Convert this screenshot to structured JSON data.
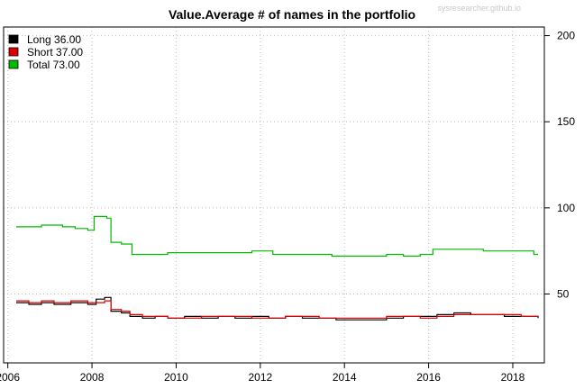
{
  "chart_data": {
    "type": "line",
    "title": "Value.Average # of names in the portfolio",
    "credit": "sysresearcher.github.io",
    "xlabel": "",
    "ylabel": "",
    "xlim": [
      2005.9,
      2018.75
    ],
    "ylim": [
      10,
      205
    ],
    "x_ticks": [
      2006,
      2008,
      2010,
      2012,
      2014,
      2016,
      2018
    ],
    "y_ticks": [
      50,
      100,
      150,
      200
    ],
    "y_axis_side": "right",
    "grid": true,
    "legend_position": "top-left",
    "series": [
      {
        "name": "Long",
        "legend_label": "Long 36.00",
        "color": "#000000",
        "points": [
          [
            2006.2,
            45
          ],
          [
            2006.5,
            44
          ],
          [
            2006.8,
            45
          ],
          [
            2007.1,
            44
          ],
          [
            2007.5,
            45
          ],
          [
            2007.9,
            44
          ],
          [
            2008.1,
            47
          ],
          [
            2008.3,
            48
          ],
          [
            2008.45,
            40
          ],
          [
            2008.7,
            39
          ],
          [
            2008.9,
            37
          ],
          [
            2009.2,
            36
          ],
          [
            2009.5,
            37
          ],
          [
            2009.8,
            36
          ],
          [
            2010.2,
            37
          ],
          [
            2010.6,
            36
          ],
          [
            2011.0,
            37
          ],
          [
            2011.4,
            36
          ],
          [
            2011.8,
            37
          ],
          [
            2012.2,
            36
          ],
          [
            2012.6,
            37
          ],
          [
            2013.0,
            36
          ],
          [
            2013.4,
            36
          ],
          [
            2013.8,
            35
          ],
          [
            2014.2,
            35
          ],
          [
            2014.6,
            35
          ],
          [
            2015.0,
            36
          ],
          [
            2015.4,
            37
          ],
          [
            2015.8,
            37
          ],
          [
            2016.2,
            38
          ],
          [
            2016.6,
            39
          ],
          [
            2017.0,
            38
          ],
          [
            2017.4,
            38
          ],
          [
            2017.8,
            37
          ],
          [
            2018.2,
            37
          ],
          [
            2018.6,
            36
          ]
        ]
      },
      {
        "name": "Short",
        "legend_label": "Short 37.00",
        "color": "#dd0000",
        "points": [
          [
            2006.2,
            46
          ],
          [
            2006.5,
            45
          ],
          [
            2006.8,
            46
          ],
          [
            2007.1,
            45
          ],
          [
            2007.5,
            46
          ],
          [
            2007.9,
            45
          ],
          [
            2008.1,
            45
          ],
          [
            2008.3,
            46
          ],
          [
            2008.45,
            41
          ],
          [
            2008.7,
            40
          ],
          [
            2008.9,
            38
          ],
          [
            2009.2,
            37
          ],
          [
            2009.5,
            37
          ],
          [
            2009.8,
            36
          ],
          [
            2010.2,
            36
          ],
          [
            2010.6,
            37
          ],
          [
            2011.0,
            37
          ],
          [
            2011.4,
            37
          ],
          [
            2011.8,
            36
          ],
          [
            2012.2,
            36
          ],
          [
            2012.6,
            37
          ],
          [
            2013.0,
            37
          ],
          [
            2013.4,
            36
          ],
          [
            2013.8,
            36
          ],
          [
            2014.2,
            36
          ],
          [
            2014.6,
            36
          ],
          [
            2015.0,
            37
          ],
          [
            2015.4,
            37
          ],
          [
            2015.8,
            36
          ],
          [
            2016.2,
            37
          ],
          [
            2016.6,
            38
          ],
          [
            2017.0,
            38
          ],
          [
            2017.4,
            38
          ],
          [
            2017.8,
            38
          ],
          [
            2018.2,
            37
          ],
          [
            2018.6,
            37
          ]
        ]
      },
      {
        "name": "Total",
        "legend_label": "Total 73.00",
        "color": "#00bb00",
        "points": [
          [
            2006.2,
            89
          ],
          [
            2006.5,
            89
          ],
          [
            2006.8,
            90
          ],
          [
            2007.1,
            90
          ],
          [
            2007.3,
            89
          ],
          [
            2007.6,
            88
          ],
          [
            2007.9,
            87
          ],
          [
            2008.05,
            95
          ],
          [
            2008.35,
            94
          ],
          [
            2008.45,
            80
          ],
          [
            2008.7,
            79
          ],
          [
            2008.95,
            73
          ],
          [
            2009.4,
            73
          ],
          [
            2009.8,
            74
          ],
          [
            2010.3,
            74
          ],
          [
            2010.8,
            74
          ],
          [
            2011.3,
            74
          ],
          [
            2011.8,
            75
          ],
          [
            2012.3,
            73
          ],
          [
            2012.8,
            73
          ],
          [
            2013.3,
            73
          ],
          [
            2013.7,
            72
          ],
          [
            2014.2,
            72
          ],
          [
            2014.6,
            72
          ],
          [
            2015.0,
            73
          ],
          [
            2015.4,
            72
          ],
          [
            2015.8,
            73
          ],
          [
            2016.1,
            76
          ],
          [
            2016.5,
            76
          ],
          [
            2016.9,
            76
          ],
          [
            2017.3,
            75
          ],
          [
            2017.7,
            75
          ],
          [
            2018.1,
            75
          ],
          [
            2018.5,
            73
          ],
          [
            2018.6,
            73
          ]
        ]
      }
    ]
  }
}
